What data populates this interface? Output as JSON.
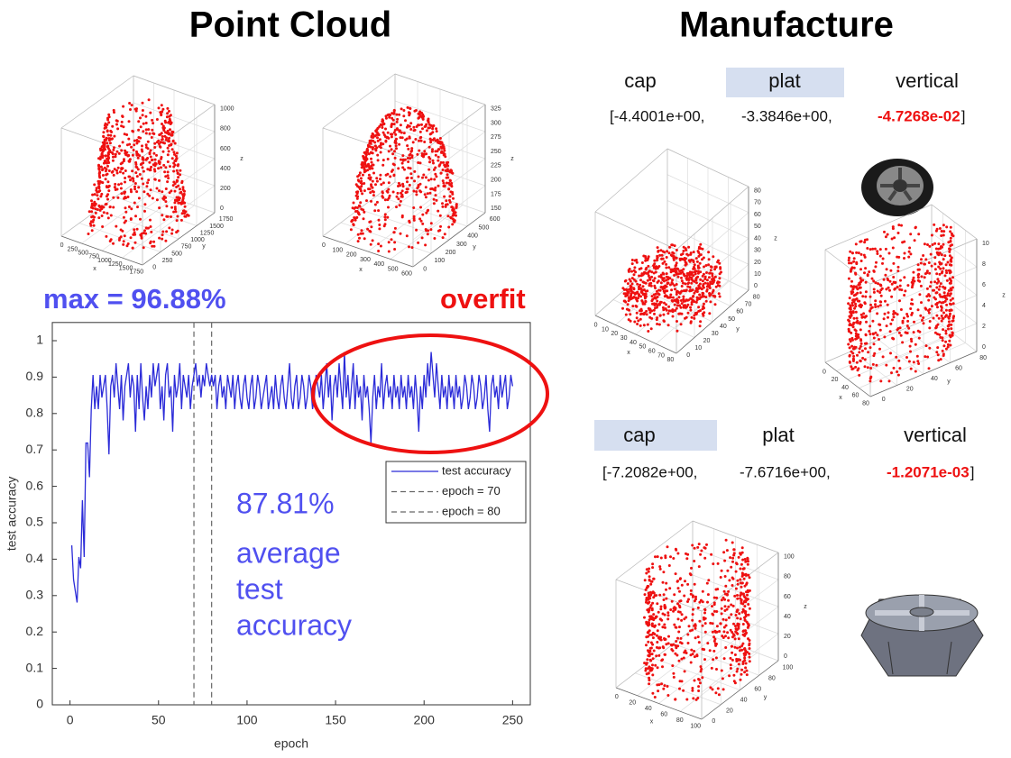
{
  "titles": {
    "left": "Point Cloud",
    "right": "Manufacture"
  },
  "chart_data": {
    "type": "line",
    "xlabel": "epoch",
    "ylabel": "test accuracy",
    "x": [
      1,
      2,
      3,
      4,
      5,
      6,
      7,
      8,
      9,
      10,
      11,
      12,
      13,
      14,
      15,
      16,
      17,
      18,
      19,
      20,
      21,
      22,
      23,
      24,
      25,
      26,
      27,
      28,
      29,
      30,
      31,
      32,
      33,
      34,
      35,
      36,
      37,
      38,
      39,
      40,
      41,
      42,
      43,
      44,
      45,
      46,
      47,
      48,
      49,
      50,
      51,
      52,
      53,
      54,
      55,
      56,
      57,
      58,
      59,
      60,
      61,
      62,
      63,
      64,
      65,
      66,
      67,
      68,
      69,
      70,
      71,
      72,
      73,
      74,
      75,
      76,
      77,
      78,
      79,
      80,
      81,
      82,
      83,
      84,
      85,
      86,
      87,
      88,
      89,
      90,
      91,
      92,
      93,
      94,
      95,
      96,
      97,
      98,
      99,
      100,
      101,
      102,
      103,
      104,
      105,
      106,
      107,
      108,
      109,
      110,
      111,
      112,
      113,
      114,
      115,
      116,
      117,
      118,
      119,
      120,
      121,
      122,
      123,
      124,
      125,
      126,
      127,
      128,
      129,
      130,
      131,
      132,
      133,
      134,
      135,
      136,
      137,
      138,
      139,
      140,
      141,
      142,
      143,
      144,
      145,
      146,
      147,
      148,
      149,
      150,
      151,
      152,
      153,
      154,
      155,
      156,
      157,
      158,
      159,
      160,
      161,
      162,
      163,
      164,
      165,
      166,
      167,
      168,
      169,
      170,
      171,
      172,
      173,
      174,
      175,
      176,
      177,
      178,
      179,
      180,
      181,
      182,
      183,
      184,
      185,
      186,
      187,
      188,
      189,
      190,
      191,
      192,
      193,
      194,
      195,
      196,
      197,
      198,
      199,
      200,
      201,
      202,
      203,
      204,
      205,
      206,
      207,
      208,
      209,
      210,
      211,
      212,
      213,
      214,
      215,
      216,
      217,
      218,
      219,
      220,
      221,
      222,
      223,
      224,
      225,
      226,
      227,
      228,
      229,
      230,
      231,
      232,
      233,
      234,
      235,
      236,
      237,
      238,
      239,
      240,
      241,
      242,
      243,
      244,
      245,
      246,
      247,
      248,
      249,
      250
    ],
    "series": [
      {
        "name": "test accuracy",
        "color": "#2b2bd8",
        "values": [
          0.438,
          0.344,
          0.312,
          0.281,
          0.406,
          0.375,
          0.562,
          0.406,
          0.719,
          0.719,
          0.625,
          0.812,
          0.906,
          0.812,
          0.875,
          0.812,
          0.906,
          0.844,
          0.875,
          0.906,
          0.812,
          0.688,
          0.875,
          0.906,
          0.844,
          0.938,
          0.875,
          0.812,
          0.906,
          0.781,
          0.875,
          0.906,
          0.938,
          0.844,
          0.906,
          0.875,
          0.75,
          0.906,
          0.812,
          0.938,
          0.844,
          0.781,
          0.875,
          0.812,
          0.906,
          0.844,
          0.938,
          0.875,
          0.906,
          0.938,
          0.812,
          0.875,
          0.781,
          0.906,
          0.938,
          0.844,
          0.875,
          0.75,
          0.906,
          0.844,
          0.875,
          0.938,
          0.812,
          0.906,
          0.875,
          0.844,
          0.906,
          0.812,
          0.875,
          0.906,
          0.938,
          0.875,
          0.906,
          0.844,
          0.906,
          0.875,
          0.938,
          0.906,
          0.875,
          0.906,
          0.875,
          0.906,
          0.812,
          0.875,
          0.906,
          0.844,
          0.875,
          0.812,
          0.906,
          0.875,
          0.844,
          0.906,
          0.812,
          0.875,
          0.906,
          0.844,
          0.812,
          0.875,
          0.906,
          0.844,
          0.812,
          0.875,
          0.906,
          0.812,
          0.844,
          0.906,
          0.875,
          0.812,
          0.844,
          0.875,
          0.906,
          0.812,
          0.844,
          0.875,
          0.812,
          0.906,
          0.844,
          0.812,
          0.875,
          0.906,
          0.844,
          0.812,
          0.875,
          0.938,
          0.844,
          0.812,
          0.875,
          0.906,
          0.812,
          0.844,
          0.906,
          0.875,
          0.812,
          0.844,
          0.906,
          0.875,
          0.812,
          0.844,
          0.906,
          0.875,
          0.844,
          0.906,
          0.812,
          0.875,
          0.938,
          0.844,
          0.906,
          0.781,
          0.875,
          0.906,
          0.844,
          0.938,
          0.875,
          0.812,
          0.969,
          0.844,
          0.906,
          0.812,
          0.875,
          0.938,
          0.812,
          0.906,
          0.844,
          0.875,
          0.781,
          0.906,
          0.844,
          0.875,
          0.812,
          0.719,
          0.844,
          0.906,
          0.812,
          0.875,
          0.844,
          0.938,
          0.812,
          0.875,
          0.906,
          0.844,
          0.875,
          0.812,
          0.906,
          0.844,
          0.875,
          0.812,
          0.906,
          0.844,
          0.875,
          0.812,
          0.906,
          0.844,
          0.875,
          0.812,
          0.906,
          0.844,
          0.75,
          0.875,
          0.812,
          0.906,
          0.844,
          0.938,
          0.875,
          0.969,
          0.906,
          0.844,
          0.938,
          0.875,
          0.812,
          0.906,
          0.844,
          0.875,
          0.812,
          0.906,
          0.844,
          0.875,
          0.812,
          0.906,
          0.844,
          0.875,
          0.812,
          0.844,
          0.906,
          0.875,
          0.812,
          0.844,
          0.906,
          0.875,
          0.812,
          0.844,
          0.906,
          0.875,
          0.812,
          0.844,
          0.906,
          0.812,
          0.75,
          0.875,
          0.906,
          0.844,
          0.875,
          0.812,
          0.906,
          0.844,
          0.875,
          0.906,
          0.812,
          0.844,
          0.906,
          0.875
        ]
      }
    ],
    "vlines": [
      {
        "name": "epoch = 70",
        "x": 70,
        "color": "#666666"
      },
      {
        "name": "epoch = 80",
        "x": 80,
        "color": "#666666"
      }
    ],
    "xlim": [
      -10,
      260
    ],
    "xticks": [
      0,
      50,
      100,
      150,
      200,
      250
    ],
    "ylim": [
      0,
      1.05
    ],
    "yticks": [
      0,
      0.1,
      0.2,
      0.3,
      0.4,
      0.5,
      0.6,
      0.7,
      0.8,
      0.9,
      1
    ],
    "annotations": {
      "max": "max = 96.88%",
      "overfit": "overfit",
      "average_value": "87.81%",
      "average_text": [
        "average",
        "test",
        "accuracy"
      ]
    }
  },
  "manufacture": [
    {
      "labels": [
        "cap",
        "plat",
        "vertical"
      ],
      "highlight": 1,
      "values": [
        "[-4.4001e+00,",
        "-3.3846e+00,",
        "-4.7268e-02"
      ],
      "close": "]"
    },
    {
      "labels": [
        "cap",
        "plat",
        "vertical"
      ],
      "highlight": 0,
      "values": [
        "[-7.2082e+00,",
        "-7.6716e+00,",
        "-1.2071e-03"
      ],
      "close": "]"
    }
  ],
  "plots3d": [
    {
      "labels": [
        "x",
        "y",
        "z"
      ],
      "xticks": [
        0,
        250,
        500,
        750,
        1000,
        1250,
        1500,
        1750
      ],
      "yticks": [
        0,
        250,
        500,
        750,
        1000,
        1250,
        1500,
        1750
      ],
      "zticks": [
        0,
        200,
        400,
        600,
        800,
        1000
      ]
    },
    {
      "labels": [
        "x",
        "y",
        "z"
      ],
      "xticks": [
        0,
        100,
        200,
        300,
        400,
        500,
        600
      ],
      "yticks": [
        0,
        100,
        200,
        300,
        400,
        500,
        600
      ],
      "zticks": [
        150,
        175,
        200,
        225,
        250,
        275,
        300,
        325
      ]
    },
    {
      "labels": [
        "x",
        "y",
        "z"
      ],
      "xticks": [
        0,
        10,
        20,
        30,
        40,
        50,
        60,
        70,
        80
      ],
      "yticks": [
        0,
        10,
        20,
        30,
        40,
        50,
        60,
        70,
        80
      ],
      "zticks": [
        0,
        10,
        20,
        30,
        40,
        50,
        60,
        70,
        80
      ]
    },
    {
      "labels": [
        "x",
        "y",
        "z"
      ],
      "xticks": [
        0,
        20,
        40,
        60,
        80
      ],
      "yticks": [
        0,
        20,
        40,
        60,
        80
      ],
      "zticks": [
        0,
        2,
        4,
        6,
        8,
        10
      ]
    },
    {
      "labels": [
        "x",
        "y",
        "z"
      ],
      "xticks": [
        0,
        20,
        40,
        60,
        80,
        100
      ],
      "yticks": [
        0,
        20,
        40,
        60,
        80,
        100
      ],
      "zticks": [
        0,
        20,
        40,
        60,
        80,
        100
      ]
    }
  ]
}
